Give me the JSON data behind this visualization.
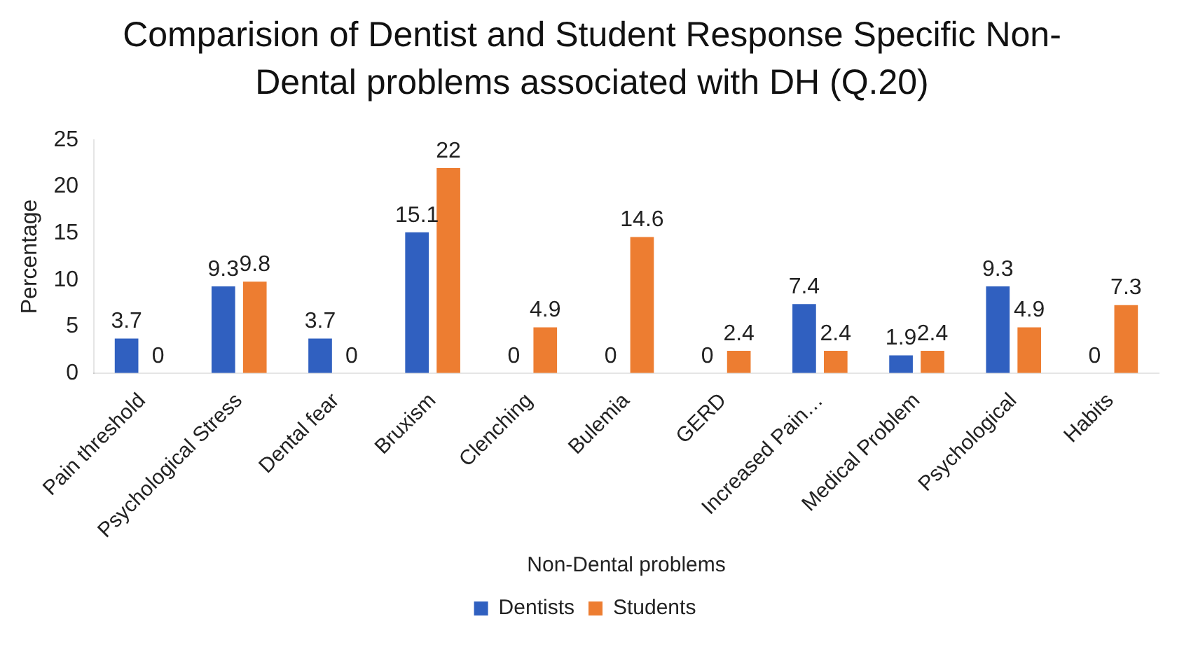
{
  "chart_data": {
    "type": "bar",
    "title": "Comparision of Dentist and Student Response Specific Non-Dental problems associated with DH (Q.20)",
    "xlabel": "Non-Dental problems",
    "ylabel": "Percentage",
    "categories": [
      "Pain threshold",
      "Psychological Stress",
      "Dental fear",
      "Bruxism",
      "Clenching",
      "Bulemia",
      "GERD",
      "Increased Pain…",
      "Medical Problem",
      "Psychological",
      "Habits"
    ],
    "series": [
      {
        "name": "Dentists",
        "color": "#3060c0",
        "values": [
          3.7,
          9.3,
          3.7,
          15.1,
          0,
          0,
          0,
          7.4,
          1.9,
          9.3,
          0
        ]
      },
      {
        "name": "Students",
        "color": "#ed7d31",
        "values": [
          0,
          9.8,
          0,
          22,
          4.9,
          14.6,
          2.4,
          2.4,
          2.4,
          4.9,
          7.3
        ]
      }
    ],
    "ylim": [
      0,
      25
    ],
    "yticks": [
      0,
      5,
      10,
      15,
      20,
      25
    ],
    "grid": false,
    "legend": "bottom",
    "data_labels": true
  }
}
